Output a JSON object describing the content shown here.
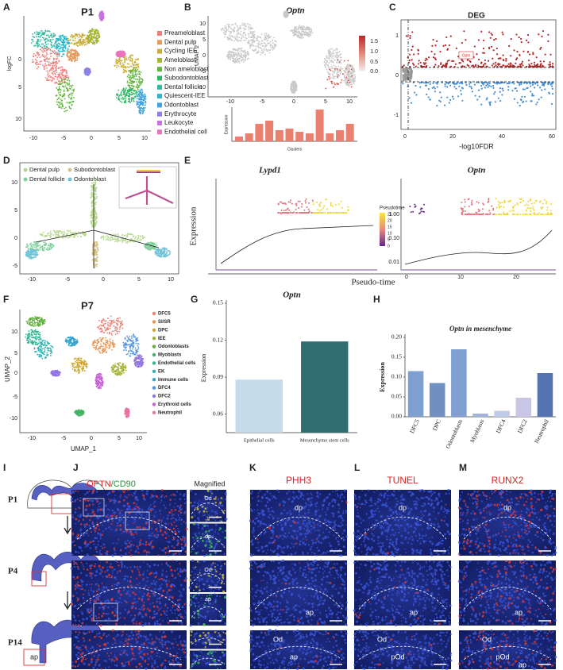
{
  "panels": {
    "A": {
      "label": "A",
      "title": "P1",
      "y_label": "logFC",
      "xticks": [
        "-10",
        "-5",
        "0",
        "5",
        "10"
      ],
      "yticks": [
        "0",
        "5",
        "10"
      ],
      "legend": [
        {
          "name": "Preameloblast",
          "color": "#f07f7a"
        },
        {
          "name": "Dental pulp",
          "color": "#e39a5c"
        },
        {
          "name": "Cycling IEE",
          "color": "#c9ad38"
        },
        {
          "name": "Ameloblast",
          "color": "#a3b52f"
        },
        {
          "name": "Non ameloblast",
          "color": "#62b53e"
        },
        {
          "name": "Subodontoblast",
          "color": "#2fb763"
        },
        {
          "name": "Dental follicle",
          "color": "#2fbba0"
        },
        {
          "name": "Quiescent-IEE",
          "color": "#2eb5c9"
        },
        {
          "name": "Odontoblast",
          "color": "#3ea3e0"
        },
        {
          "name": "Erythrocyte",
          "color": "#8b82e6"
        },
        {
          "name": "Leukocyte",
          "color": "#c673e0"
        },
        {
          "name": "Endothelial cell",
          "color": "#e873bd"
        }
      ]
    },
    "B": {
      "label": "B",
      "title": "Optn",
      "y_label": "UMAP 2",
      "xticks": [
        "-10",
        "-5",
        "0",
        "5",
        "10"
      ],
      "yticks": [
        "10",
        "5",
        "0",
        "-5",
        "-10"
      ],
      "colorbar": [
        "1.5",
        "1.0",
        "0.5",
        "0.0"
      ],
      "sub_y_label": "Expression",
      "sub_x_label": "Clusters"
    },
    "C": {
      "label": "C",
      "title": "DEG",
      "x_label": "-log10FDR",
      "xticks": [
        "0",
        "20",
        "40",
        "60"
      ],
      "yticks": [
        "1",
        "0",
        "-1"
      ],
      "annotation": "Optn"
    },
    "D": {
      "label": "D",
      "legend": [
        {
          "name": "Dental pulp",
          "color": "#b7d98f"
        },
        {
          "name": "Subodontoblast",
          "color": "#d9c38a"
        },
        {
          "name": "Dental follicle",
          "color": "#7fcf9a"
        },
        {
          "name": "Odontoblast",
          "color": "#6fc3d8"
        }
      ],
      "xticks": [
        "-10",
        "-5",
        "0",
        "5",
        "10"
      ],
      "yticks": [
        "10",
        "5",
        "0",
        "-5"
      ]
    },
    "E": {
      "label": "E",
      "titles": [
        "Lypd1",
        "Optn"
      ],
      "y_label": "Expression",
      "x_label": "Pseudo-time",
      "legend_title": "Pseudotime",
      "legend_ticks": [
        "25",
        "20",
        "15",
        "10",
        "5",
        "0"
      ],
      "yticks": [
        "1.00",
        "0.10",
        "0.01"
      ],
      "xticks": [
        "0",
        "10",
        "20"
      ]
    },
    "F": {
      "label": "F",
      "title": "P7",
      "x_label": "UMAP_1",
      "y_label": "UMAP_2",
      "xticks": [
        "-10",
        "-5",
        "0",
        "5",
        "10"
      ],
      "yticks": [
        "10",
        "5",
        "0",
        "-5",
        "-10"
      ],
      "legend": [
        {
          "name": "DFC5",
          "color": "#f07f72"
        },
        {
          "name": "SI/SR",
          "color": "#e8934f"
        },
        {
          "name": "DPC",
          "color": "#d1a42e"
        },
        {
          "name": "IEE",
          "color": "#a3b32f"
        },
        {
          "name": "Odontoblasts",
          "color": "#62ad40"
        },
        {
          "name": "Myoblasts",
          "color": "#3fb463"
        },
        {
          "name": "Endothelial cells",
          "color": "#30b592"
        },
        {
          "name": "EK",
          "color": "#2fb3b3"
        },
        {
          "name": "Immune cells",
          "color": "#31a3cb"
        },
        {
          "name": "DFC4",
          "color": "#5293e2"
        },
        {
          "name": "DFC2",
          "color": "#9274e2"
        },
        {
          "name": "Erythroid cells",
          "color": "#c562d3"
        },
        {
          "name": "Neutrophil",
          "color": "#e873a6"
        }
      ]
    },
    "G": {
      "label": "G"
    },
    "H": {
      "label": "H"
    },
    "I": {
      "label": "I",
      "stages": [
        "P1",
        "P4",
        "P14"
      ],
      "annotation": "ap"
    },
    "J": {
      "label": "J",
      "title_parts": [
        "OPTN",
        "/CD90"
      ],
      "subtitle": "Magnified",
      "labels": [
        "Od",
        "dp",
        "Od",
        "ap"
      ]
    },
    "K": {
      "label": "K",
      "title": "PHH3",
      "labels": [
        "dp",
        "ap",
        "Od",
        "ap"
      ]
    },
    "L": {
      "label": "L",
      "title": "TUNEL",
      "labels": [
        "dp",
        "ap",
        "Od",
        "pOd"
      ]
    },
    "M": {
      "label": "M",
      "title": "RUNX2",
      "labels": [
        "dp",
        "ap",
        "Od",
        "pOd",
        "ap"
      ]
    }
  },
  "chart_data": [
    {
      "type": "bar",
      "title": "Optn",
      "y_label": "Expression",
      "categories": [
        "Epithelial cells",
        "Mesenchyme stem cells"
      ],
      "values": [
        0.088,
        0.119
      ],
      "colors": [
        "#c6dbea",
        "#2f6e73"
      ],
      "ylim": [
        0.045,
        0.15
      ],
      "yticks": [
        0.06,
        0.09,
        0.12,
        0.15
      ]
    },
    {
      "type": "bar",
      "title": "Optn in mesenchyme",
      "y_label": "Expression",
      "categories": [
        "DFC5",
        "DPC",
        "Odontoblasts",
        "Myoblasts",
        "DFC4",
        "DFC2",
        "Neutrophil"
      ],
      "values": [
        0.115,
        0.085,
        0.17,
        0.008,
        0.015,
        0.048,
        0.11
      ],
      "colors": [
        "#7f9fcf",
        "#7090c2",
        "#809fd2",
        "#9fb3dc",
        "#bfcbe8",
        "#c8c6e4",
        "#5473b0"
      ],
      "ylim": [
        0,
        0.2
      ],
      "yticks": [
        {
          "value": 0,
          "label": "0.00"
        },
        0.05,
        {
          "value": 0.1,
          "label": "0.10"
        },
        0.15,
        {
          "value": 0.2,
          "label": "0.20"
        }
      ]
    }
  ]
}
